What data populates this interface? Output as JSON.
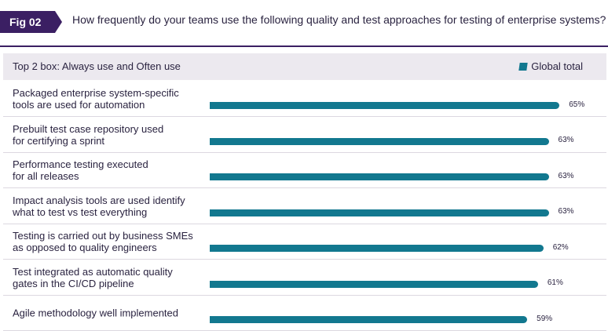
{
  "header": {
    "fig_label": "Fig 02",
    "question": "How frequently do your teams use the following quality and test approaches for testing of enterprise systems?"
  },
  "colors": {
    "brand": "#3b1f63",
    "bar": "#12788f",
    "band": "#ece9ef"
  },
  "chart_data": {
    "type": "bar",
    "orientation": "horizontal",
    "title": "Top 2 box: Always use and Often use",
    "legend": [
      "Global total"
    ],
    "legend_position": "top-right",
    "unit": "%",
    "xlim": [
      0,
      100
    ],
    "categories": [
      "Packaged enterprise system-specific tools are used for automation",
      "Prebuilt test case repository used for certifying a sprint",
      "Performance testing executed for all releases",
      "Impact analysis tools are used identify what to test vs test everything",
      "Testing is carried out by business SMEs as opposed to quality engineers",
      "Test integrated as automatic quality gates in the CI/CD pipeline",
      "Agile methodology well implemented"
    ],
    "label_lines": [
      [
        "Packaged enterprise system-specific",
        "tools are used for automation"
      ],
      [
        "Prebuilt test case repository used",
        "for certifying a sprint"
      ],
      [
        "Performance testing executed",
        "for all releases"
      ],
      [
        "Impact analysis tools are used identify",
        "what to test vs test everything"
      ],
      [
        "Testing is carried out by business SMEs",
        "as opposed to quality engineers"
      ],
      [
        "Test integrated as automatic quality",
        "gates in the CI/CD pipeline"
      ],
      [
        "Agile methodology well implemented"
      ]
    ],
    "series": [
      {
        "name": "Global total",
        "values": [
          65,
          63,
          63,
          63,
          62,
          61,
          59
        ]
      }
    ],
    "value_labels": [
      "65%",
      "63%",
      "63%",
      "63%",
      "62%",
      "61%",
      "59%"
    ]
  }
}
